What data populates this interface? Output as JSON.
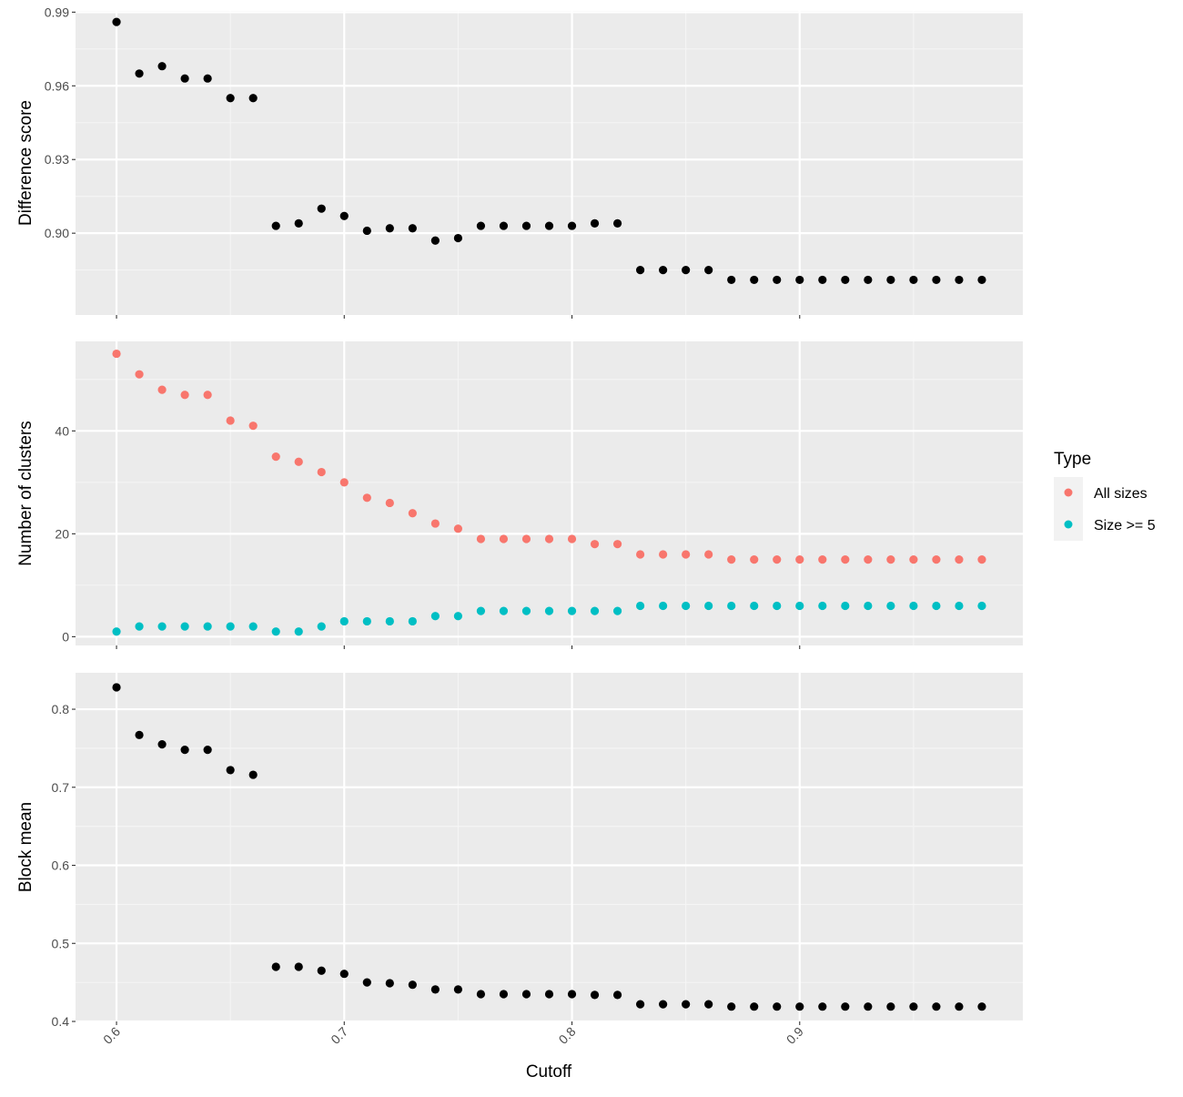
{
  "colors": {
    "panel_bg": "#ebebeb",
    "grid_major": "#ffffff",
    "grid_minor": "#f5f5f5",
    "tick": "#333333",
    "tick_label": "#4d4d4d",
    "black_points": "#000000",
    "all_sizes": "#f8766d",
    "size5": "#00bfc4"
  },
  "chart_data": [
    {
      "type": "scatter",
      "name": "difference-score",
      "ylabel": "Difference score",
      "xlabel": "",
      "x_ticks": [
        "0.6",
        "0.7",
        "0.8",
        "0.9"
      ],
      "x_tick_values": [
        0.6,
        0.7,
        0.8,
        0.9
      ],
      "xlim": [
        0.582,
        0.998
      ],
      "ylim": [
        0.8667,
        0.9905
      ],
      "y_ticks": [
        "0.90",
        "0.93",
        "0.96",
        "0.99"
      ],
      "y_tick_values": [
        0.9,
        0.93,
        0.96,
        0.99
      ],
      "series": [
        {
          "color": "#000000",
          "x": [
            0.6,
            0.61,
            0.62,
            0.63,
            0.64,
            0.65,
            0.66,
            0.67,
            0.68,
            0.69,
            0.7,
            0.71,
            0.72,
            0.73,
            0.74,
            0.75,
            0.76,
            0.77,
            0.78,
            0.79,
            0.8,
            0.81,
            0.82,
            0.83,
            0.84,
            0.85,
            0.86,
            0.87,
            0.88,
            0.89,
            0.9,
            0.91,
            0.92,
            0.93,
            0.94,
            0.95,
            0.96,
            0.97,
            0.98
          ],
          "y": [
            0.986,
            0.965,
            0.968,
            0.963,
            0.963,
            0.955,
            0.955,
            0.903,
            0.904,
            0.91,
            0.907,
            0.901,
            0.902,
            0.902,
            0.897,
            0.898,
            0.903,
            0.903,
            0.903,
            0.903,
            0.903,
            0.904,
            0.904,
            0.885,
            0.885,
            0.885,
            0.885,
            0.881,
            0.881,
            0.881,
            0.881,
            0.881,
            0.881,
            0.881,
            0.881,
            0.881,
            0.881,
            0.881,
            0.881
          ]
        }
      ]
    },
    {
      "type": "scatter",
      "name": "number-of-clusters",
      "ylabel": "Number of clusters",
      "xlabel": "",
      "x_ticks": [
        "0.6",
        "0.7",
        "0.8",
        "0.9"
      ],
      "x_tick_values": [
        0.6,
        0.7,
        0.8,
        0.9
      ],
      "xlim": [
        0.582,
        0.998
      ],
      "ylim": [
        -1.7,
        57.4
      ],
      "y_ticks": [
        "0",
        "20",
        "40"
      ],
      "y_tick_values": [
        0,
        20,
        40
      ],
      "legend": {
        "title": "Type",
        "position": "right",
        "entries": [
          {
            "label": "All sizes",
            "color": "#f8766d"
          },
          {
            "label": "Size >= 5",
            "color": "#00bfc4"
          }
        ]
      },
      "series": [
        {
          "name": "All sizes",
          "color": "#f8766d",
          "x": [
            0.6,
            0.61,
            0.62,
            0.63,
            0.64,
            0.65,
            0.66,
            0.67,
            0.68,
            0.69,
            0.7,
            0.71,
            0.72,
            0.73,
            0.74,
            0.75,
            0.76,
            0.77,
            0.78,
            0.79,
            0.8,
            0.81,
            0.82,
            0.83,
            0.84,
            0.85,
            0.86,
            0.87,
            0.88,
            0.89,
            0.9,
            0.91,
            0.92,
            0.93,
            0.94,
            0.95,
            0.96,
            0.97,
            0.98
          ],
          "y": [
            55,
            51,
            48,
            47,
            47,
            42,
            41,
            35,
            34,
            32,
            30,
            27,
            26,
            24,
            22,
            21,
            19,
            19,
            19,
            19,
            19,
            18,
            18,
            16,
            16,
            16,
            16,
            15,
            15,
            15,
            15,
            15,
            15,
            15,
            15,
            15,
            15,
            15,
            15
          ]
        },
        {
          "name": "Size >= 5",
          "color": "#00bfc4",
          "x": [
            0.6,
            0.61,
            0.62,
            0.63,
            0.64,
            0.65,
            0.66,
            0.67,
            0.68,
            0.69,
            0.7,
            0.71,
            0.72,
            0.73,
            0.74,
            0.75,
            0.76,
            0.77,
            0.78,
            0.79,
            0.8,
            0.81,
            0.82,
            0.83,
            0.84,
            0.85,
            0.86,
            0.87,
            0.88,
            0.89,
            0.9,
            0.91,
            0.92,
            0.93,
            0.94,
            0.95,
            0.96,
            0.97,
            0.98
          ],
          "y": [
            1,
            2,
            2,
            2,
            2,
            2,
            2,
            1,
            1,
            2,
            3,
            3,
            3,
            3,
            4,
            4,
            5,
            5,
            5,
            5,
            5,
            5,
            5,
            6,
            6,
            6,
            6,
            6,
            6,
            6,
            6,
            6,
            6,
            6,
            6,
            6,
            6,
            6,
            6
          ]
        }
      ]
    },
    {
      "type": "scatter",
      "name": "block-mean",
      "ylabel": "Block mean",
      "xlabel": "Cutoff",
      "x_ticks": [
        "0.6",
        "0.7",
        "0.8",
        "0.9"
      ],
      "x_tick_values": [
        0.6,
        0.7,
        0.8,
        0.9
      ],
      "xlim": [
        0.582,
        0.998
      ],
      "ylim": [
        0.4,
        0.8467
      ],
      "y_ticks": [
        "0.4",
        "0.5",
        "0.6",
        "0.7",
        "0.8"
      ],
      "y_tick_values": [
        0.4,
        0.5,
        0.6,
        0.7,
        0.8
      ],
      "series": [
        {
          "color": "#000000",
          "x": [
            0.6,
            0.61,
            0.62,
            0.63,
            0.64,
            0.65,
            0.66,
            0.67,
            0.68,
            0.69,
            0.7,
            0.71,
            0.72,
            0.73,
            0.74,
            0.75,
            0.76,
            0.77,
            0.78,
            0.79,
            0.8,
            0.81,
            0.82,
            0.83,
            0.84,
            0.85,
            0.86,
            0.87,
            0.88,
            0.89,
            0.9,
            0.91,
            0.92,
            0.93,
            0.94,
            0.95,
            0.96,
            0.97,
            0.98
          ],
          "y": [
            0.828,
            0.767,
            0.755,
            0.748,
            0.748,
            0.722,
            0.716,
            0.47,
            0.47,
            0.465,
            0.461,
            0.45,
            0.449,
            0.447,
            0.441,
            0.441,
            0.435,
            0.435,
            0.435,
            0.435,
            0.435,
            0.434,
            0.434,
            0.422,
            0.422,
            0.422,
            0.422,
            0.419,
            0.419,
            0.419,
            0.419,
            0.419,
            0.419,
            0.419,
            0.419,
            0.419,
            0.419,
            0.419,
            0.419
          ]
        }
      ]
    }
  ]
}
